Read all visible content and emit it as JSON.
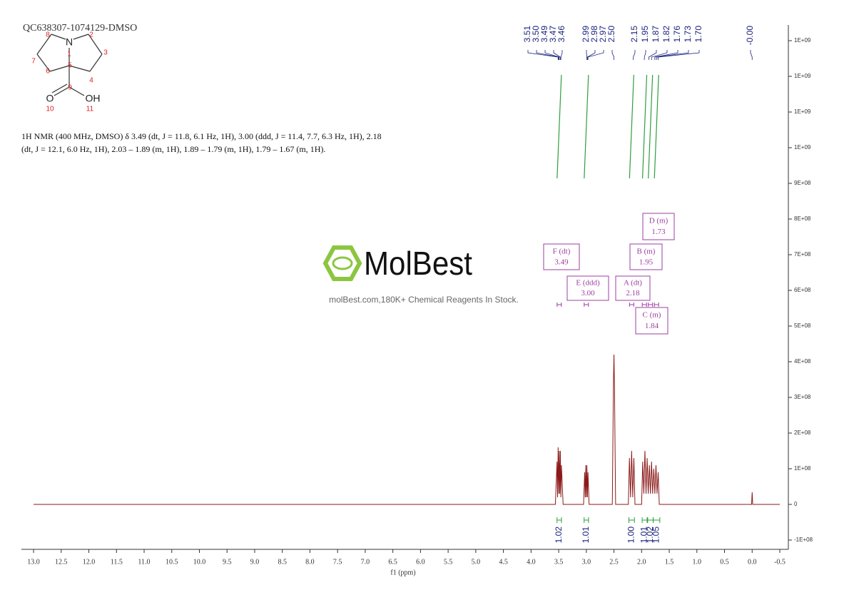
{
  "chart_data": {
    "type": "nmr",
    "title": "QC638307-1074129-DMSO",
    "description": [
      "1H NMR (400 MHz, DMSO) δ 3.49 (dt, J = 11.8, 6.1 Hz, 1H), 3.00 (ddd, J = 11.4, 7.7, 6.3 Hz, 1H), 2.18",
      "(dt, J = 12.1, 6.0 Hz, 1H), 2.03 – 1.89 (m, 1H), 1.89 – 1.79 (m, 1H), 1.79 – 1.67 (m, 1H)."
    ],
    "molecule": {
      "atoms": [
        "N",
        "O",
        "OH"
      ],
      "numbers": [
        1,
        2,
        3,
        4,
        5,
        6,
        7,
        8,
        9,
        10,
        11
      ]
    },
    "watermark": {
      "brand": "MolBest",
      "tagline": "molBest.com,180K+ Chemical Reagents In Stock."
    },
    "x_label": "f1 (ppm)",
    "xlim": [
      13.22,
      -0.655
    ],
    "ylim": [
      -126000000,
      1344000000
    ],
    "xticks": [
      {
        "value": 13,
        "label": "13.0"
      },
      12.5,
      {
        "value": 12,
        "label": "12.0"
      },
      11.5,
      {
        "value": 11,
        "label": "11.0"
      },
      10.5,
      {
        "value": 10,
        "label": "10.0"
      },
      9.5,
      {
        "value": 9,
        "label": "9.0"
      },
      8.5,
      {
        "value": 8,
        "label": "8.0"
      },
      7.5,
      {
        "value": 7,
        "label": "7.0"
      },
      6.5,
      {
        "value": 6,
        "label": "6.0"
      },
      5.5,
      {
        "value": 5,
        "label": "5.0"
      },
      4.5,
      {
        "value": 4,
        "label": "4.0"
      },
      3.5,
      {
        "value": 3,
        "label": "3.0"
      },
      2.5,
      {
        "value": 2,
        "label": "2.0"
      },
      1.5,
      {
        "value": 1,
        "label": "1.0"
      },
      0.5,
      {
        "value": 0,
        "label": "0.0"
      },
      -0.5
    ],
    "yticks": [
      {
        "value": 1300000000,
        "label": "1E+09"
      },
      {
        "value": 1200000000,
        "label": "1E+09"
      },
      {
        "value": 1100000000,
        "label": "1E+09"
      },
      {
        "value": 1000000000,
        "label": "1E+09"
      },
      {
        "value": 900000000,
        "label": "9E+08"
      },
      {
        "value": 800000000,
        "label": "8E+08"
      },
      {
        "value": 700000000,
        "label": "7E+08"
      },
      {
        "value": 600000000,
        "label": "6E+08"
      },
      {
        "value": 500000000,
        "label": "5E+08"
      },
      {
        "value": 400000000,
        "label": "4E+08"
      },
      {
        "value": 300000000,
        "label": "3E+08"
      },
      {
        "value": 200000000,
        "label": "2E+08"
      },
      {
        "value": 100000000,
        "label": "1E+08"
      },
      0,
      {
        "value": -100000000,
        "label": "-1E+08"
      }
    ],
    "series": [
      {
        "color": "#8b1a1a",
        "x": [
          13.0,
          3.56,
          3.53,
          3.52,
          3.51,
          3.5,
          3.49,
          3.48,
          3.47,
          3.46,
          3.45,
          3.42,
          3.05,
          3.03,
          3.02,
          3.01,
          3.0,
          2.99,
          2.98,
          2.97,
          2.95,
          2.53,
          2.51,
          2.5,
          2.49,
          2.47,
          2.24,
          2.22,
          2.2,
          2.18,
          2.16,
          2.14,
          2.12,
          2.0,
          1.98,
          1.96,
          1.94,
          1.92,
          1.9,
          1.88,
          1.86,
          1.84,
          1.82,
          1.8,
          1.78,
          1.76,
          1.74,
          1.72,
          1.7,
          1.68,
          0.01,
          0.0,
          -0.01,
          -0.5
        ],
        "values": [
          0,
          0,
          120000000,
          20000000,
          160000000,
          30000000,
          150000000,
          30000000,
          150000000,
          20000000,
          110000000,
          0,
          0,
          90000000,
          20000000,
          110000000,
          20000000,
          110000000,
          20000000,
          90000000,
          0,
          0,
          330000000,
          420000000,
          320000000,
          0,
          0,
          130000000,
          20000000,
          150000000,
          20000000,
          130000000,
          0,
          0,
          120000000,
          30000000,
          150000000,
          30000000,
          130000000,
          30000000,
          110000000,
          30000000,
          120000000,
          30000000,
          100000000,
          30000000,
          110000000,
          30000000,
          90000000,
          0,
          0,
          34000000,
          0,
          0
        ]
      }
    ],
    "peak_labels": [
      3.51,
      {
        "value": 3.5,
        "label": "3.50"
      },
      3.49,
      3.47,
      3.46,
      2.99,
      2.98,
      2.97,
      {
        "value": 2.5,
        "label": "2.50"
      },
      2.15,
      1.95,
      1.87,
      1.82,
      1.76,
      1.73,
      {
        "value": 1.7,
        "label": "1.70"
      },
      {
        "value": 0,
        "label": "-0.00"
      }
    ],
    "integrals": [
      {
        "from": 3.53,
        "to": 3.45,
        "value": 1.02
      },
      {
        "from": 3.04,
        "to": 2.96,
        "value": 1.01
      },
      {
        "from": 2.23,
        "to": 2.13,
        "value": {
          "value": 1,
          "label": "1.00"
        }
      },
      {
        "from": 1.99,
        "to": 1.9,
        "value": 1.01
      },
      {
        "from": 1.89,
        "to": 1.79,
        "value": 1.02
      },
      {
        "from": 1.79,
        "to": 1.67,
        "value": 1.05
      }
    ],
    "multiplets": [
      {
        "name": "F (dt)",
        "shift": 3.49
      },
      {
        "name": "E (ddd)",
        "shift": {
          "value": 3,
          "label": "3.00"
        }
      },
      {
        "name": "A (dt)",
        "shift": 2.18
      },
      {
        "name": "B (m)",
        "shift": 1.95
      },
      {
        "name": "C (m)",
        "shift": 1.84
      },
      {
        "name": "D (m)",
        "shift": 1.73
      }
    ]
  }
}
